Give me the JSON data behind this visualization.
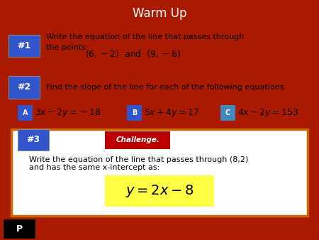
{
  "title": "Warm Up",
  "title_bg": "#1a7a1a",
  "title_color": "white",
  "main_bg": "white",
  "outer_bg": "#aa1a00",
  "bottom_bg": "#1a7a1a",
  "label_bg": "#3355cc",
  "label1_text": "#1",
  "label2_text": "#2",
  "label3_text": "#3",
  "problem1_line1": "Write the equation of the line that passes through",
  "problem1_line2": "the points:",
  "problem1_points": "$(6,-2)$  and  $(9,-6)$",
  "problem2_text": "Find the slope of the line for each of the following equations:",
  "eq_a_label": "A",
  "eq_a": "$3x-2y=-18$",
  "eq_b_label": "B",
  "eq_b": "$5x+4y=17$",
  "eq_c_label": "C",
  "eq_c": "$4x-2y=153$",
  "challenge_bg": "#bb0000",
  "challenge_text": "Challenge.",
  "problem3_line1": "Write the equation of the line that passes through (8,2)",
  "problem3_line2": "and has the same x-intercept as:",
  "answer_bg": "#ffff44",
  "answer_text": "$y = 2x-8$",
  "p_text": "P",
  "p_bg": "black",
  "p_color": "white",
  "box3_border": "#cc6600"
}
